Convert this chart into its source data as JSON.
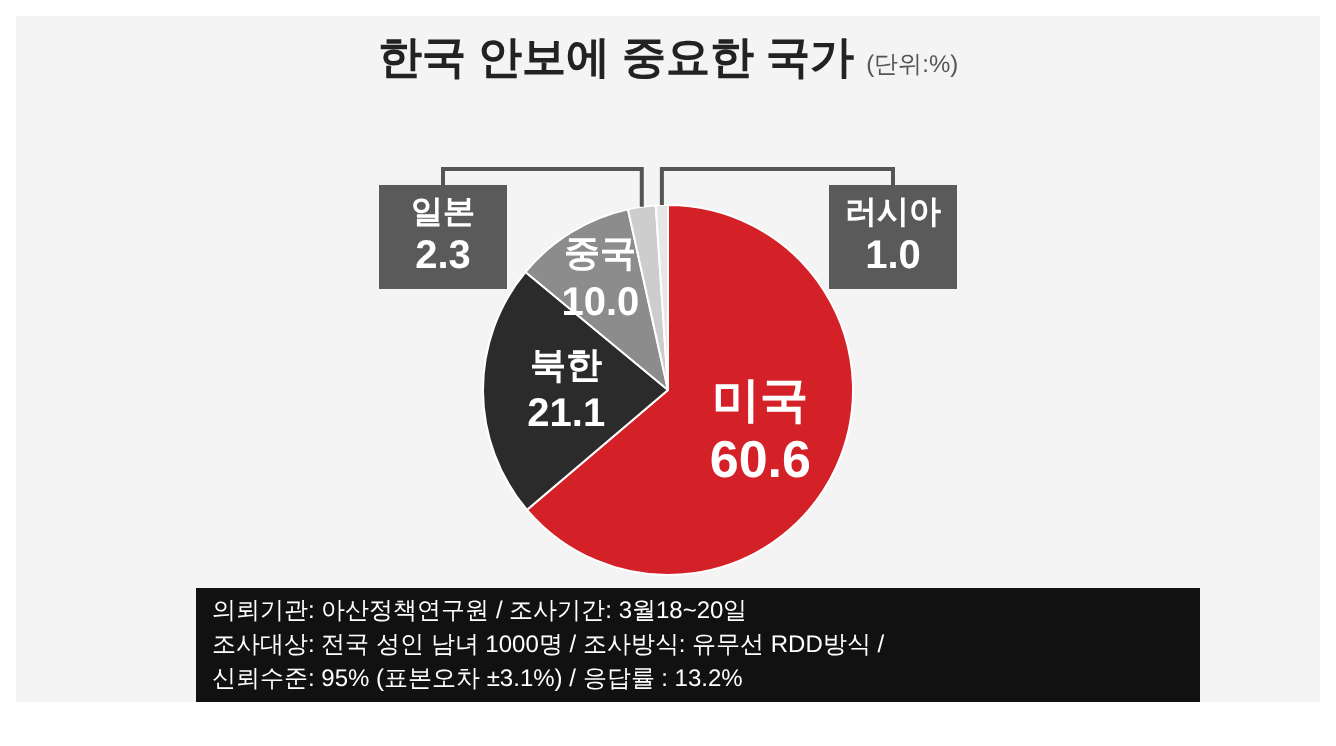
{
  "chart_data": {
    "type": "pie",
    "title": "한국 안보에 중요한 국가",
    "subtitle": "(단위:%)",
    "categories": [
      "미국",
      "북한",
      "중국",
      "일본",
      "러시아"
    ],
    "values": [
      60.6,
      21.1,
      10.0,
      2.3,
      1.0
    ],
    "colors": [
      "#d42027",
      "#2b2b2b",
      "#8c8c8c",
      "#cdcdcd",
      "#e6e6e6"
    ],
    "value_labels": [
      "60.6",
      "21.1",
      "10.0",
      "2.3",
      "1.0"
    ],
    "legend": false,
    "annotations": [
      "의뢰기관: 아산정책연구원 / 조사기간: 3월18~20일",
      "조사대상: 전국 성인 남녀 1000명 / 조사방식: 유무선 RDD방식 /",
      "신뢰수준: 95% (표본오차 ±3.1%) / 응답률 : 13.2%"
    ]
  }
}
